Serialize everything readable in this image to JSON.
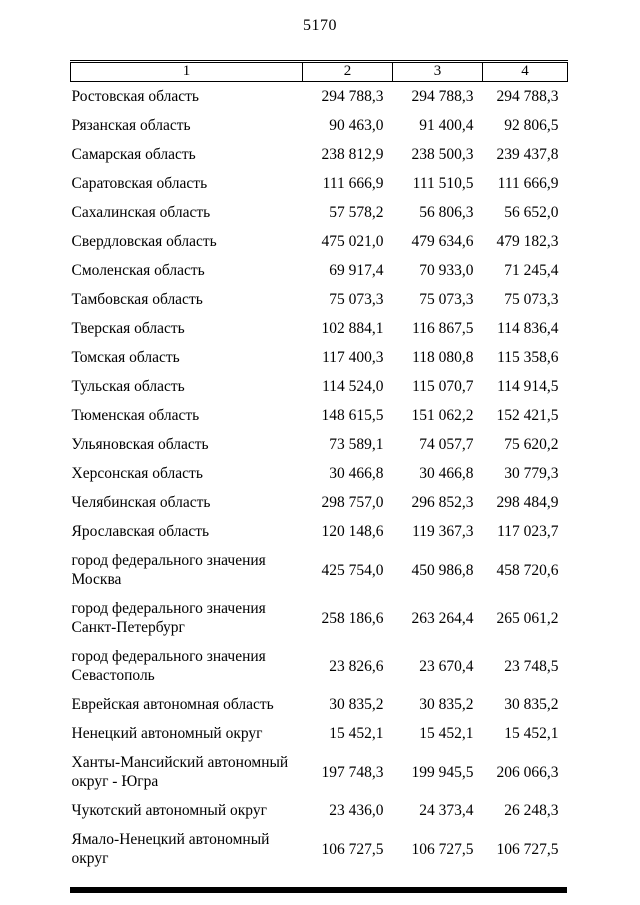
{
  "page": {
    "number": "5170"
  },
  "table": {
    "headers": [
      "1",
      "2",
      "3",
      "4"
    ],
    "rows": [
      {
        "name": "Ростовская область",
        "values": [
          "294 788,3",
          "294 788,3",
          "294 788,3"
        ]
      },
      {
        "name": "Рязанская область",
        "values": [
          "90 463,0",
          "91 400,4",
          "92 806,5"
        ]
      },
      {
        "name": "Самарская область",
        "values": [
          "238 812,9",
          "238 500,3",
          "239 437,8"
        ]
      },
      {
        "name": "Саратовская область",
        "values": [
          "111 666,9",
          "111 510,5",
          "111 666,9"
        ]
      },
      {
        "name": "Сахалинская область",
        "values": [
          "57 578,2",
          "56 806,3",
          "56 652,0"
        ]
      },
      {
        "name": "Свердловская область",
        "values": [
          "475 021,0",
          "479 634,6",
          "479 182,3"
        ]
      },
      {
        "name": "Смоленская область",
        "values": [
          "69 917,4",
          "70 933,0",
          "71 245,4"
        ]
      },
      {
        "name": "Тамбовская область",
        "values": [
          "75 073,3",
          "75 073,3",
          "75 073,3"
        ]
      },
      {
        "name": "Тверская область",
        "values": [
          "102 884,1",
          "116 867,5",
          "114 836,4"
        ]
      },
      {
        "name": "Томская область",
        "values": [
          "117 400,3",
          "118 080,8",
          "115 358,6"
        ]
      },
      {
        "name": "Тульская область",
        "values": [
          "114 524,0",
          "115 070,7",
          "114 914,5"
        ]
      },
      {
        "name": "Тюменская область",
        "values": [
          "148 615,5",
          "151 062,2",
          "152 421,5"
        ]
      },
      {
        "name": "Ульяновская область",
        "values": [
          "73 589,1",
          "74 057,7",
          "75 620,2"
        ]
      },
      {
        "name": "Херсонская область",
        "values": [
          "30 466,8",
          "30 466,8",
          "30 779,3"
        ]
      },
      {
        "name": "Челябинская область",
        "values": [
          "298 757,0",
          "296 852,3",
          "298 484,9"
        ]
      },
      {
        "name": "Ярославская область",
        "values": [
          "120 148,6",
          "119 367,3",
          "117 023,7"
        ]
      },
      {
        "name": "город федерального значения Москва",
        "values": [
          "425 754,0",
          "450 986,8",
          "458 720,6"
        ]
      },
      {
        "name": "город федерального значения Санкт-Петербург",
        "values": [
          "258 186,6",
          "263 264,4",
          "265 061,2"
        ]
      },
      {
        "name": "город федерального значения Севастополь",
        "values": [
          "23 826,6",
          "23 670,4",
          "23 748,5"
        ]
      },
      {
        "name": "Еврейская автономная область",
        "values": [
          "30 835,2",
          "30 835,2",
          "30 835,2"
        ]
      },
      {
        "name": "Ненецкий автономный округ",
        "values": [
          "15 452,1",
          "15 452,1",
          "15 452,1"
        ]
      },
      {
        "name": "Ханты-Мансийский автономный округ - Югра",
        "values": [
          "197 748,3",
          "199 945,5",
          "206 066,3"
        ]
      },
      {
        "name": "Чукотский автономный округ",
        "values": [
          "23 436,0",
          "24 373,4",
          "26 248,3"
        ]
      },
      {
        "name": "Ямало-Ненецкий автономный округ",
        "values": [
          "106 727,5",
          "106 727,5",
          "106 727,5"
        ]
      }
    ]
  }
}
